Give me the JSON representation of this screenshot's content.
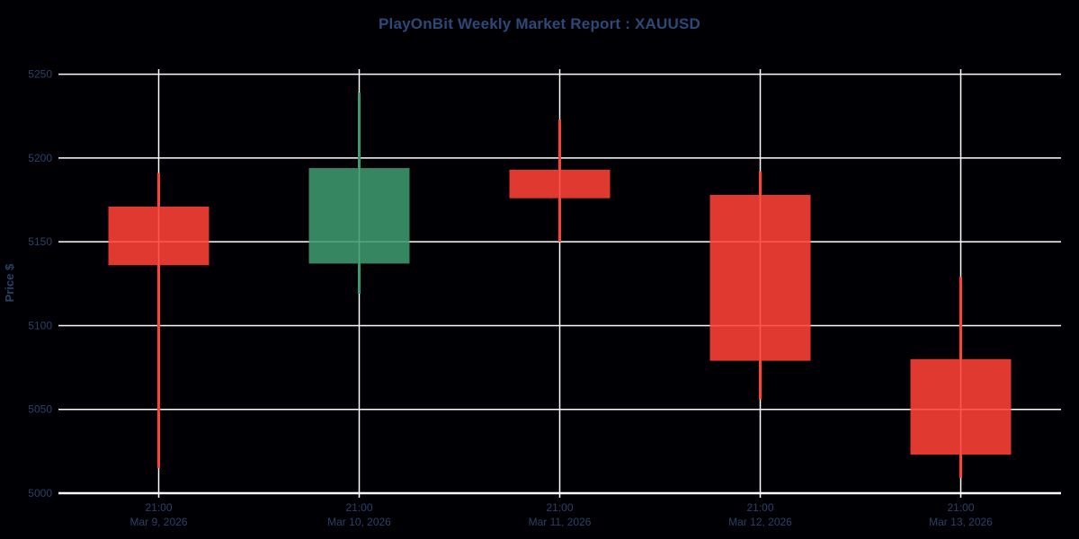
{
  "title": "PlayOnBit Weekly Market Report : XAUUSD",
  "colors": {
    "background": "#000004",
    "grid": "#ffffff",
    "axis_line": "#ffffff",
    "text": "#2b4166",
    "title_text": "#2b4a78",
    "increasing": "#3D9970",
    "decreasing": "#FF4136"
  },
  "chart_data": {
    "type": "candlestick",
    "title": "PlayOnBit Weekly Market Report : XAUUSD",
    "xlabel": "",
    "ylabel": "Price $",
    "grid": true,
    "y_range": [
      5000,
      5253
    ],
    "y_ticks": [
      5000,
      5050,
      5100,
      5150,
      5200,
      5250
    ],
    "increasing_color": "#3D9970",
    "decreasing_color": "#FF4136",
    "ohlc": [
      {
        "time": "21:00",
        "date": "Mar 9, 2026",
        "open": 5171,
        "high": 5191,
        "low": 5015,
        "close": 5136,
        "direction": "decreasing"
      },
      {
        "time": "21:00",
        "date": "Mar 10, 2026",
        "open": 5137,
        "high": 5239,
        "low": 5119,
        "close": 5194,
        "direction": "increasing"
      },
      {
        "time": "21:00",
        "date": "Mar 11, 2026",
        "open": 5193,
        "high": 5223,
        "low": 5150,
        "close": 5176,
        "direction": "decreasing"
      },
      {
        "time": "21:00",
        "date": "Mar 12, 2026",
        "open": 5178,
        "high": 5192,
        "low": 5056,
        "close": 5079,
        "direction": "decreasing"
      },
      {
        "time": "21:00",
        "date": "Mar 13, 2026",
        "open": 5080,
        "high": 5129,
        "low": 5009,
        "close": 5023,
        "direction": "decreasing"
      }
    ]
  }
}
